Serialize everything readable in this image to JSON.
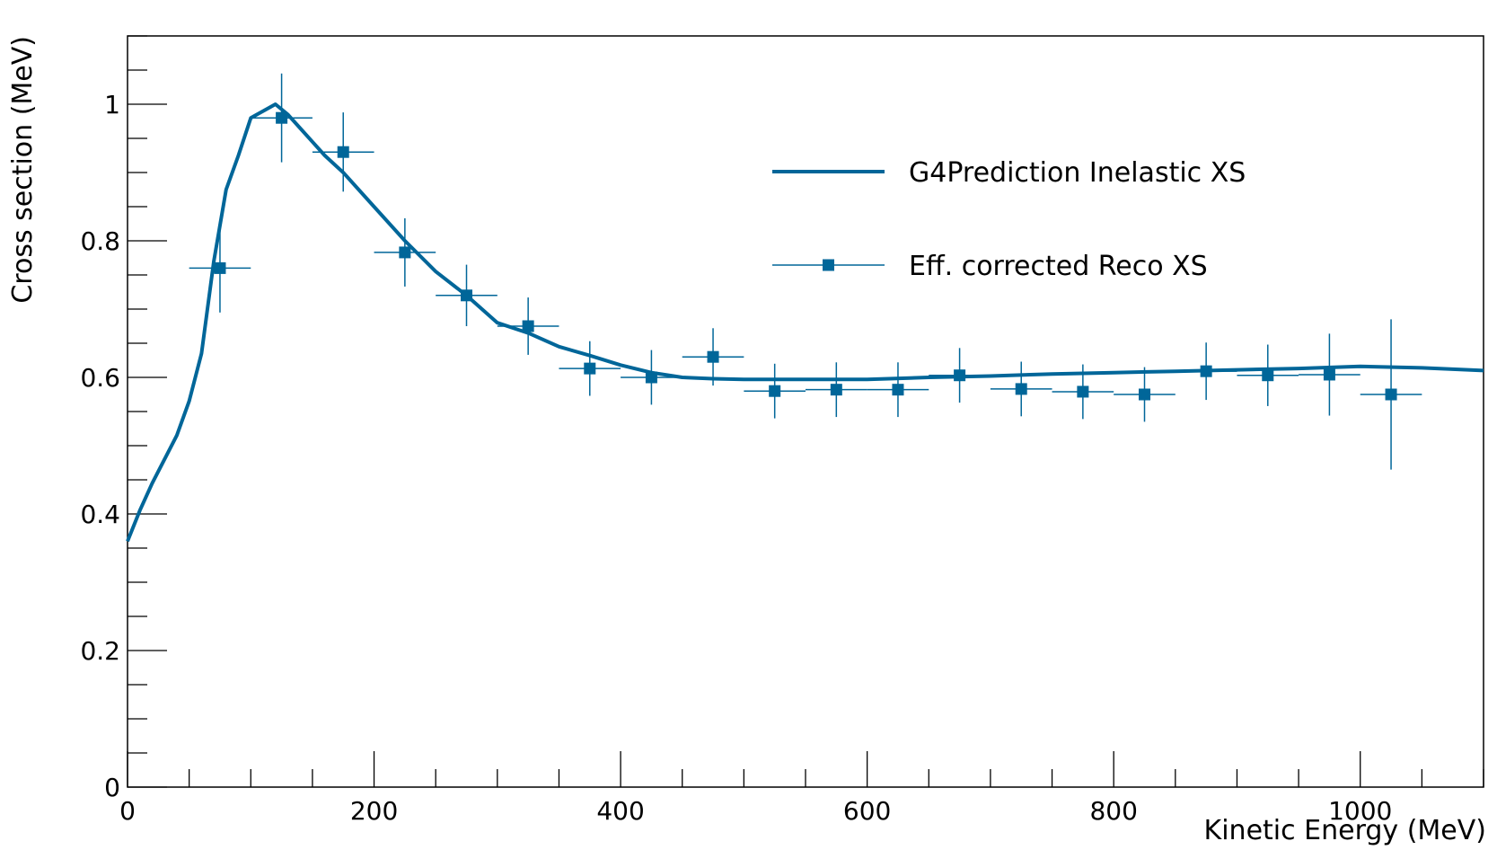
{
  "chart_data": {
    "type": "line",
    "xlabel": "Kinetic Energy (MeV)",
    "ylabel": "Cross section (MeV)",
    "xlim": [
      0,
      1100
    ],
    "ylim": [
      0,
      1.1
    ],
    "x_ticks": [
      0,
      200,
      400,
      600,
      800,
      1000
    ],
    "x_tick_labels": [
      "0",
      "200",
      "400",
      "600",
      "800",
      "1000"
    ],
    "y_ticks": [
      0,
      0.2,
      0.4,
      0.6,
      0.8,
      1
    ],
    "y_tick_labels": [
      "0",
      "0.2",
      "0.4",
      "0.6",
      "0.8",
      "1"
    ],
    "grid": false,
    "legend_position": "top-right",
    "series_color": "#006699",
    "series": [
      {
        "name": "G4Prediction Inelastic XS",
        "kind": "line",
        "x": [
          0,
          10,
          20,
          30,
          40,
          50,
          60,
          70,
          80,
          90,
          100,
          110,
          120,
          130,
          140,
          150,
          160,
          175,
          200,
          225,
          250,
          275,
          300,
          325,
          350,
          375,
          400,
          425,
          450,
          475,
          500,
          550,
          600,
          650,
          700,
          750,
          800,
          850,
          900,
          950,
          1000,
          1050,
          1100
        ],
        "y": [
          0.36,
          0.405,
          0.445,
          0.48,
          0.515,
          0.565,
          0.635,
          0.77,
          0.875,
          0.925,
          0.98,
          0.99,
          1.0,
          0.985,
          0.965,
          0.945,
          0.925,
          0.9,
          0.85,
          0.8,
          0.755,
          0.72,
          0.68,
          0.665,
          0.645,
          0.632,
          0.618,
          0.607,
          0.6,
          0.598,
          0.597,
          0.597,
          0.597,
          0.6,
          0.602,
          0.605,
          0.607,
          0.609,
          0.611,
          0.613,
          0.616,
          0.614,
          0.61
        ]
      },
      {
        "name": "Eff. corrected Reco XS",
        "kind": "points",
        "x": [
          75,
          125,
          175,
          225,
          275,
          325,
          375,
          425,
          475,
          525,
          575,
          625,
          675,
          725,
          775,
          825,
          875,
          925,
          975,
          1025
        ],
        "y": [
          0.76,
          0.98,
          0.93,
          0.783,
          0.72,
          0.675,
          0.613,
          0.6,
          0.63,
          0.58,
          0.582,
          0.582,
          0.603,
          0.583,
          0.579,
          0.575,
          0.609,
          0.603,
          0.604,
          0.575
        ],
        "x_err": [
          25,
          25,
          25,
          25,
          25,
          25,
          25,
          25,
          25,
          25,
          25,
          25,
          25,
          25,
          25,
          25,
          25,
          25,
          25,
          25
        ],
        "y_err": [
          0.065,
          0.065,
          0.058,
          0.05,
          0.045,
          0.042,
          0.04,
          0.04,
          0.042,
          0.04,
          0.04,
          0.04,
          0.04,
          0.04,
          0.04,
          0.04,
          0.042,
          0.045,
          0.06,
          0.11
        ]
      }
    ]
  }
}
